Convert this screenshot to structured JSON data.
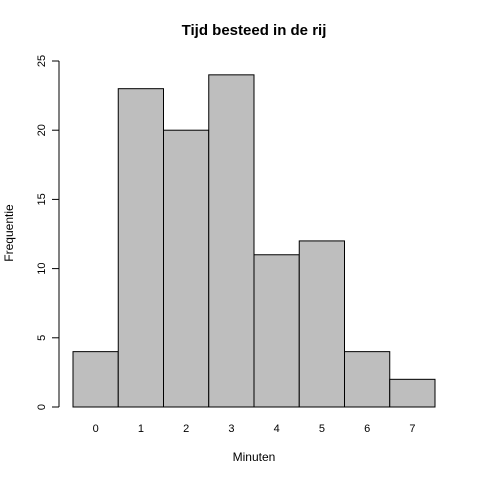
{
  "chart_data": {
    "type": "bar",
    "title": "Tijd besteed in de rij",
    "xlabel": "Minuten",
    "ylabel": "Frequentie",
    "categories": [
      "0",
      "1",
      "2",
      "3",
      "4",
      "5",
      "6",
      "7"
    ],
    "values": [
      4,
      23,
      20,
      24,
      11,
      12,
      4,
      2
    ],
    "ylim": [
      0,
      25
    ],
    "yticks": [
      0,
      5,
      10,
      15,
      20,
      25
    ],
    "grid": false,
    "legend": "none",
    "colors": {
      "bar_fill": "#bebebe",
      "bar_stroke": "#000000"
    }
  }
}
